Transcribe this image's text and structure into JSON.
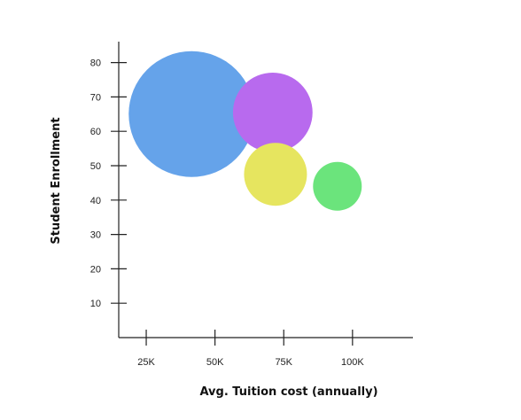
{
  "chart_data": {
    "type": "scatter",
    "title": "",
    "xlabel": "Avg. Tuition cost (annually)",
    "ylabel": "Student Enrollment",
    "xlim": [
      15000,
      120000
    ],
    "ylim": [
      0,
      88
    ],
    "x_ticks": [
      {
        "value": 25000,
        "label": "25K"
      },
      {
        "value": 50000,
        "label": "50K"
      },
      {
        "value": 75000,
        "label": "75K"
      },
      {
        "value": 100000,
        "label": "100K"
      }
    ],
    "y_ticks": [
      {
        "value": 10,
        "label": "10"
      },
      {
        "value": 20,
        "label": "20"
      },
      {
        "value": 30,
        "label": "30"
      },
      {
        "value": 40,
        "label": "40"
      },
      {
        "value": 50,
        "label": "50"
      },
      {
        "value": 60,
        "label": "60"
      },
      {
        "value": 70,
        "label": "70"
      },
      {
        "value": 80,
        "label": "80"
      }
    ],
    "grid": false,
    "legend": "none",
    "points": [
      {
        "x": 41500,
        "y": 65,
        "size": 100,
        "color": "#65a3ea"
      },
      {
        "x": 71000,
        "y": 65.5,
        "size": 40,
        "color": "#b86aee"
      },
      {
        "x": 72000,
        "y": 47.5,
        "size": 25,
        "color": "#e6e55f"
      },
      {
        "x": 94500,
        "y": 44,
        "size": 15,
        "color": "#6be47c"
      }
    ]
  }
}
